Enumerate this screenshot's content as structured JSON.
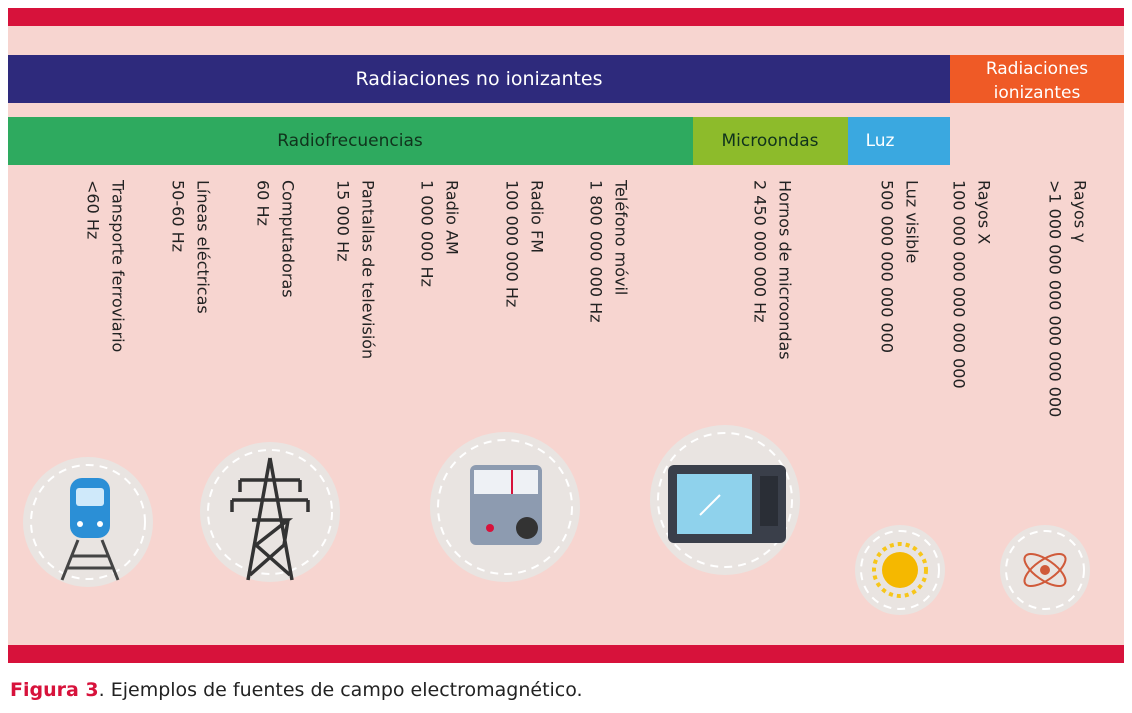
{
  "bands": {
    "non_ionizing": "Radiaciones no ionizantes",
    "ionizing": [
      "Radiaciones",
      "ionizantes"
    ]
  },
  "sections": {
    "radio": "Radiofrecuencias",
    "micro": "Microondas",
    "light": "Luz"
  },
  "items": [
    {
      "name": "Transporte ferroviario",
      "freq": "<60 Hz"
    },
    {
      "name": "Líneas eléctricas",
      "freq": "50-60 Hz"
    },
    {
      "name": "Computadoras",
      "freq": "60 Hz"
    },
    {
      "name": "Pantallas de televisión",
      "freq": "15 000 Hz"
    },
    {
      "name": "Radio AM",
      "freq": "1 000 000 Hz"
    },
    {
      "name": "Radio FM",
      "freq": "100 000 000 Hz"
    },
    {
      "name": "Teléfono móvil",
      "freq": "1 800 000 000 Hz"
    },
    {
      "name": "Hornos de microondas",
      "freq": "2 450 000 000 Hz"
    },
    {
      "name": "Luz visible",
      "freq": "500 000 000 000 000"
    },
    {
      "name": "Rayos X",
      "freq": "100 000 000 000 000 000"
    },
    {
      "name": "Rayos γ",
      "freq": ">1 000 000 000 000 000 000"
    }
  ],
  "caption": {
    "label": "Figura 3",
    "text": ". Ejemplos de fuentes de campo electromagnético."
  }
}
